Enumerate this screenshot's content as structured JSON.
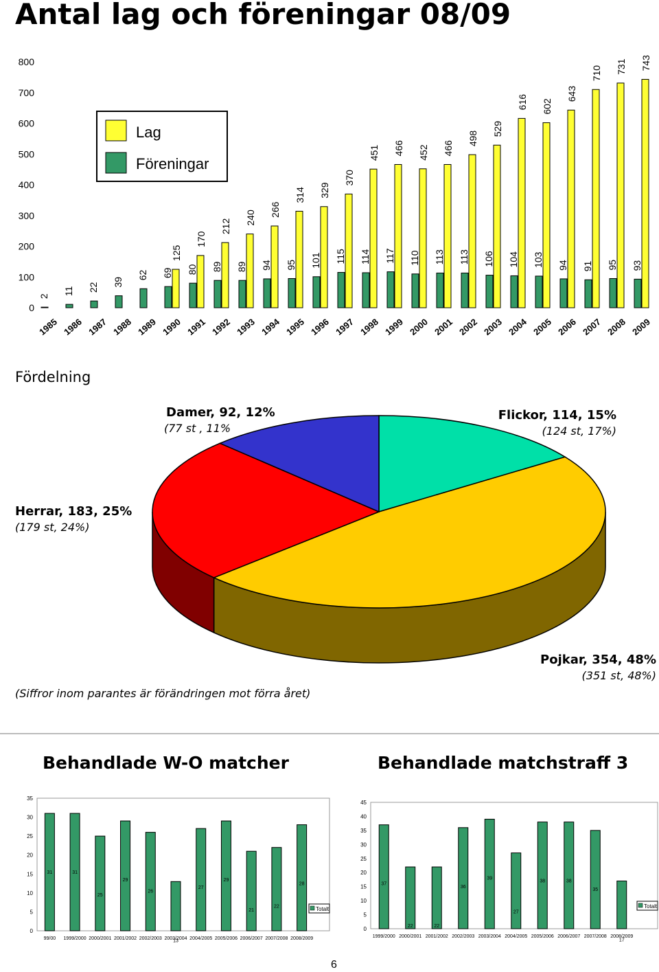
{
  "page": {
    "title": "Antal lag och föreningar 08/09",
    "page_number": "6"
  },
  "chart_data": [
    {
      "type": "bar",
      "title": "",
      "xlabel": "",
      "ylabel": "",
      "ylim": [
        0,
        800
      ],
      "yticks": [
        "0",
        "100",
        "200",
        "300",
        "400",
        "500",
        "600",
        "700",
        "800"
      ],
      "grid": false,
      "legend": "top-left",
      "categories": [
        "1985",
        "1986",
        "1987",
        "1988",
        "1989",
        "1990",
        "1991",
        "1992",
        "1993",
        "1994",
        "1995",
        "1996",
        "1997",
        "1998",
        "1999",
        "2000",
        "2001",
        "2002",
        "2003",
        "2004",
        "2005",
        "2006",
        "2007",
        "2008",
        "2009"
      ],
      "series": [
        {
          "name": "Lag",
          "color": "#ffff33",
          "values": [
            null,
            null,
            null,
            null,
            null,
            125,
            170,
            212,
            240,
            266,
            314,
            329,
            370,
            451,
            466,
            452,
            466,
            498,
            529,
            616,
            602,
            643,
            710,
            731,
            743
          ]
        },
        {
          "name": "Föreningar",
          "color": "#339966",
          "values": [
            2,
            11,
            22,
            39,
            62,
            69,
            80,
            89,
            89,
            94,
            95,
            101,
            115,
            114,
            117,
            110,
            113,
            113,
            106,
            104,
            103,
            94,
            91,
            95,
            93
          ]
        }
      ]
    },
    {
      "type": "pie",
      "title": "Fördelning",
      "note": "(Siffror inom parantes är förändringen mot förra året)",
      "slices": [
        {
          "name": "Flickor",
          "value": 114,
          "pct": 15,
          "label": "Flickor, 114, 15%",
          "sublabel": "(124 st, 17%)",
          "color": "#00e0a8"
        },
        {
          "name": "Pojkar",
          "value": 354,
          "pct": 48,
          "label": "Pojkar, 354, 48%",
          "sublabel": "(351 st, 48%)",
          "color": "#ffcc00"
        },
        {
          "name": "Herrar",
          "value": 183,
          "pct": 25,
          "label": "Herrar, 183, 25%",
          "sublabel": "(179 st, 24%)",
          "color": "#ff0000"
        },
        {
          "name": "Damer",
          "value": 92,
          "pct": 12,
          "label": "Damer, 92, 12%",
          "sublabel": "(77 st , 11%",
          "color": "#3333cc"
        }
      ]
    },
    {
      "type": "bar",
      "title": "Behandlade W-O matcher",
      "xlabel": "",
      "ylabel": "",
      "ylim": [
        0,
        35
      ],
      "yticks": [
        "0",
        "5",
        "10",
        "15",
        "20",
        "25",
        "30",
        "35"
      ],
      "grid": false,
      "legend": "right",
      "categories": [
        "99/00",
        "1999/2000",
        "2000/2001",
        "2001/2002",
        "2002/2003",
        "2003/2004",
        "2004/2005",
        "2005/2006",
        "2006/2007",
        "2007/2008",
        "2008/2009"
      ],
      "series": [
        {
          "name": "Totalt",
          "color": "#339966",
          "values": [
            31,
            31,
            25,
            29,
            26,
            13,
            27,
            29,
            21,
            22,
            28
          ]
        }
      ]
    },
    {
      "type": "bar",
      "title": "Behandlade matchstraff 3",
      "xlabel": "",
      "ylabel": "",
      "ylim": [
        0,
        45
      ],
      "yticks": [
        "0",
        "5",
        "10",
        "15",
        "20",
        "25",
        "30",
        "35",
        "40",
        "45"
      ],
      "grid": false,
      "legend": "right",
      "categories": [
        "1999/2000",
        "2000/2001",
        "2001/2002",
        "2002/2003",
        "2003/2004",
        "2004/2005",
        "2005/2006",
        "2006/2007",
        "2007/2008",
        "2008/2009"
      ],
      "series": [
        {
          "name": "Totalt",
          "color": "#339966",
          "values": [
            37,
            22,
            22,
            36,
            39,
            27,
            38,
            38,
            35,
            17
          ]
        }
      ]
    }
  ]
}
